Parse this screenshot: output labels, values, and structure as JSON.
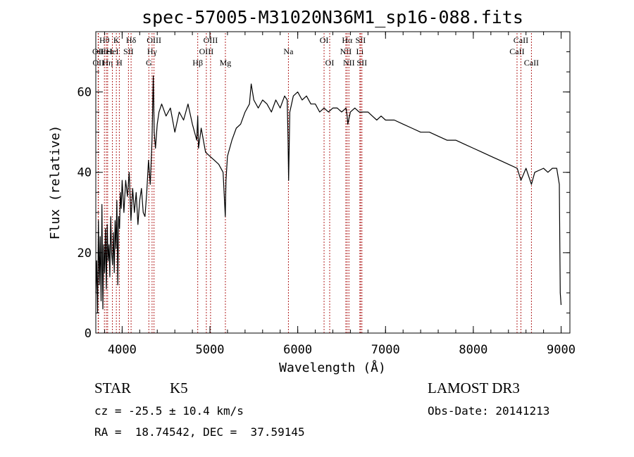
{
  "chart_data": {
    "type": "line",
    "title": "spec-57005-M31020N36M1_sp16-088.fits",
    "xlabel": "Wavelength (Å)",
    "ylabel": "Flux (relative)",
    "xlim": [
      3700,
      9100
    ],
    "ylim": [
      0,
      75
    ],
    "x_ticks": [
      4000,
      5000,
      6000,
      7000,
      8000,
      9000
    ],
    "y_ticks": [
      0,
      20,
      40,
      60
    ],
    "x_tick_labels": [
      "4000",
      "5000",
      "6000",
      "7000",
      "8000",
      "9000"
    ],
    "y_tick_labels": [
      "0",
      "20",
      "40",
      "60"
    ],
    "x_minor_step": 200,
    "y_minor_step": 5,
    "grid": false,
    "line_color": "#000000",
    "marker_color": "#b22222",
    "series": [
      {
        "x": [
          3700,
          3710,
          3720,
          3730,
          3740,
          3750,
          3760,
          3770,
          3780,
          3790,
          3800,
          3810,
          3820,
          3830,
          3840,
          3850,
          3860,
          3870,
          3880,
          3890,
          3900,
          3910,
          3920,
          3930,
          3940,
          3950,
          3960,
          3970,
          3980,
          3990,
          4000,
          4020,
          4040,
          4060,
          4080,
          4100,
          4120,
          4140,
          4160,
          4180,
          4200,
          4220,
          4240,
          4260,
          4280,
          4300,
          4320,
          4340,
          4355,
          4365,
          4380,
          4400,
          4420,
          4450,
          4500,
          4550,
          4600,
          4650,
          4700,
          4750,
          4800,
          4850,
          4861,
          4870,
          4900,
          4950,
          5000,
          5050,
          5100,
          5150,
          5175,
          5183,
          5200,
          5250,
          5300,
          5350,
          5400,
          5450,
          5470,
          5500,
          5550,
          5600,
          5650,
          5700,
          5750,
          5800,
          5850,
          5880,
          5890,
          5896,
          5910,
          5950,
          6000,
          6050,
          6100,
          6150,
          6200,
          6250,
          6300,
          6350,
          6400,
          6450,
          6500,
          6550,
          6563,
          6570,
          6600,
          6650,
          6700,
          6750,
          6800,
          6850,
          6900,
          6950,
          7000,
          7100,
          7200,
          7300,
          7400,
          7500,
          7600,
          7700,
          7800,
          7900,
          8000,
          8100,
          8200,
          8300,
          8400,
          8500,
          8542,
          8600,
          8662,
          8700,
          8800,
          8850,
          8900,
          8950,
          8980,
          8990,
          9000
        ],
        "y": [
          10,
          18,
          5,
          28,
          12,
          24,
          8,
          32,
          6,
          22,
          15,
          26,
          11,
          27,
          18,
          22,
          14,
          29,
          20,
          17,
          25,
          15,
          28,
          21,
          33,
          12,
          29,
          26,
          35,
          31,
          38,
          30,
          38,
          34,
          40,
          28,
          36,
          30,
          35,
          27,
          33,
          36,
          30,
          29,
          35,
          43,
          37,
          48,
          64,
          50,
          46,
          52,
          55,
          57,
          54,
          56,
          50,
          55,
          53,
          57,
          52,
          48,
          54,
          46,
          51,
          45,
          44,
          43,
          42,
          40,
          29,
          38,
          44,
          48,
          51,
          52,
          55,
          57,
          62,
          58,
          56,
          58,
          57,
          55,
          58,
          56,
          59,
          58,
          48,
          38,
          55,
          59,
          60,
          58,
          59,
          57,
          57,
          55,
          56,
          55,
          56,
          56,
          55,
          56,
          54,
          52,
          55,
          56,
          55,
          55,
          55,
          54,
          53,
          54,
          53,
          53,
          52,
          51,
          50,
          50,
          49,
          48,
          48,
          47,
          46,
          45,
          44,
          43,
          42,
          41,
          38,
          41,
          37,
          40,
          41,
          40,
          41,
          41,
          37,
          10,
          7
        ]
      }
    ],
    "markers": [
      {
        "x": 3727,
        "row": 1,
        "label": "OII"
      },
      {
        "x": 3730,
        "row": 2,
        "label": "OII"
      },
      {
        "x": 3798,
        "row": 0,
        "label": "Hθ"
      },
      {
        "x": 3820,
        "row": 1,
        "label": "HeI"
      },
      {
        "x": 3835,
        "row": 2,
        "label": "Hη"
      },
      {
        "x": 3889,
        "row": 1,
        "label": "HeI"
      },
      {
        "x": 3934,
        "row": 0,
        "label": "K"
      },
      {
        "x": 3968,
        "row": 2,
        "label": "H"
      },
      {
        "x": 4072,
        "row": 1,
        "label": "SII"
      },
      {
        "x": 4102,
        "row": 0,
        "label": "Hδ"
      },
      {
        "x": 4304,
        "row": 2,
        "label": "G"
      },
      {
        "x": 4341,
        "row": 1,
        "label": "Hγ"
      },
      {
        "x": 4363,
        "row": 0,
        "label": "OIII"
      },
      {
        "x": 4861,
        "row": 2,
        "label": "Hβ"
      },
      {
        "x": 4959,
        "row": 1,
        "label": "OIII"
      },
      {
        "x": 5007,
        "row": 0,
        "label": "OIII"
      },
      {
        "x": 5176,
        "row": 2,
        "label": "Mg"
      },
      {
        "x": 5894,
        "row": 1,
        "label": "Na"
      },
      {
        "x": 6300,
        "row": 0,
        "label": "OI"
      },
      {
        "x": 6364,
        "row": 2,
        "label": "OI"
      },
      {
        "x": 6548,
        "row": 1,
        "label": "NII"
      },
      {
        "x": 6563,
        "row": 0,
        "label": "Hα"
      },
      {
        "x": 6583,
        "row": 2,
        "label": "NII"
      },
      {
        "x": 6708,
        "row": 1,
        "label": "Li"
      },
      {
        "x": 6716,
        "row": 0,
        "label": "SII"
      },
      {
        "x": 6731,
        "row": 2,
        "label": "SII"
      },
      {
        "x": 8498,
        "row": 1,
        "label": "CaII"
      },
      {
        "x": 8542,
        "row": 0,
        "label": "CaII"
      },
      {
        "x": 8662,
        "row": 2,
        "label": "CaII"
      }
    ]
  },
  "info": {
    "class": "STAR",
    "subclass": "K5",
    "survey": "LAMOST DR3",
    "redshift": "cz = -25.5 ± 10.4 km/s",
    "obs_date": "Obs-Date: 20141213",
    "coords": "RA =  18.74542, DEC =  37.59145"
  }
}
